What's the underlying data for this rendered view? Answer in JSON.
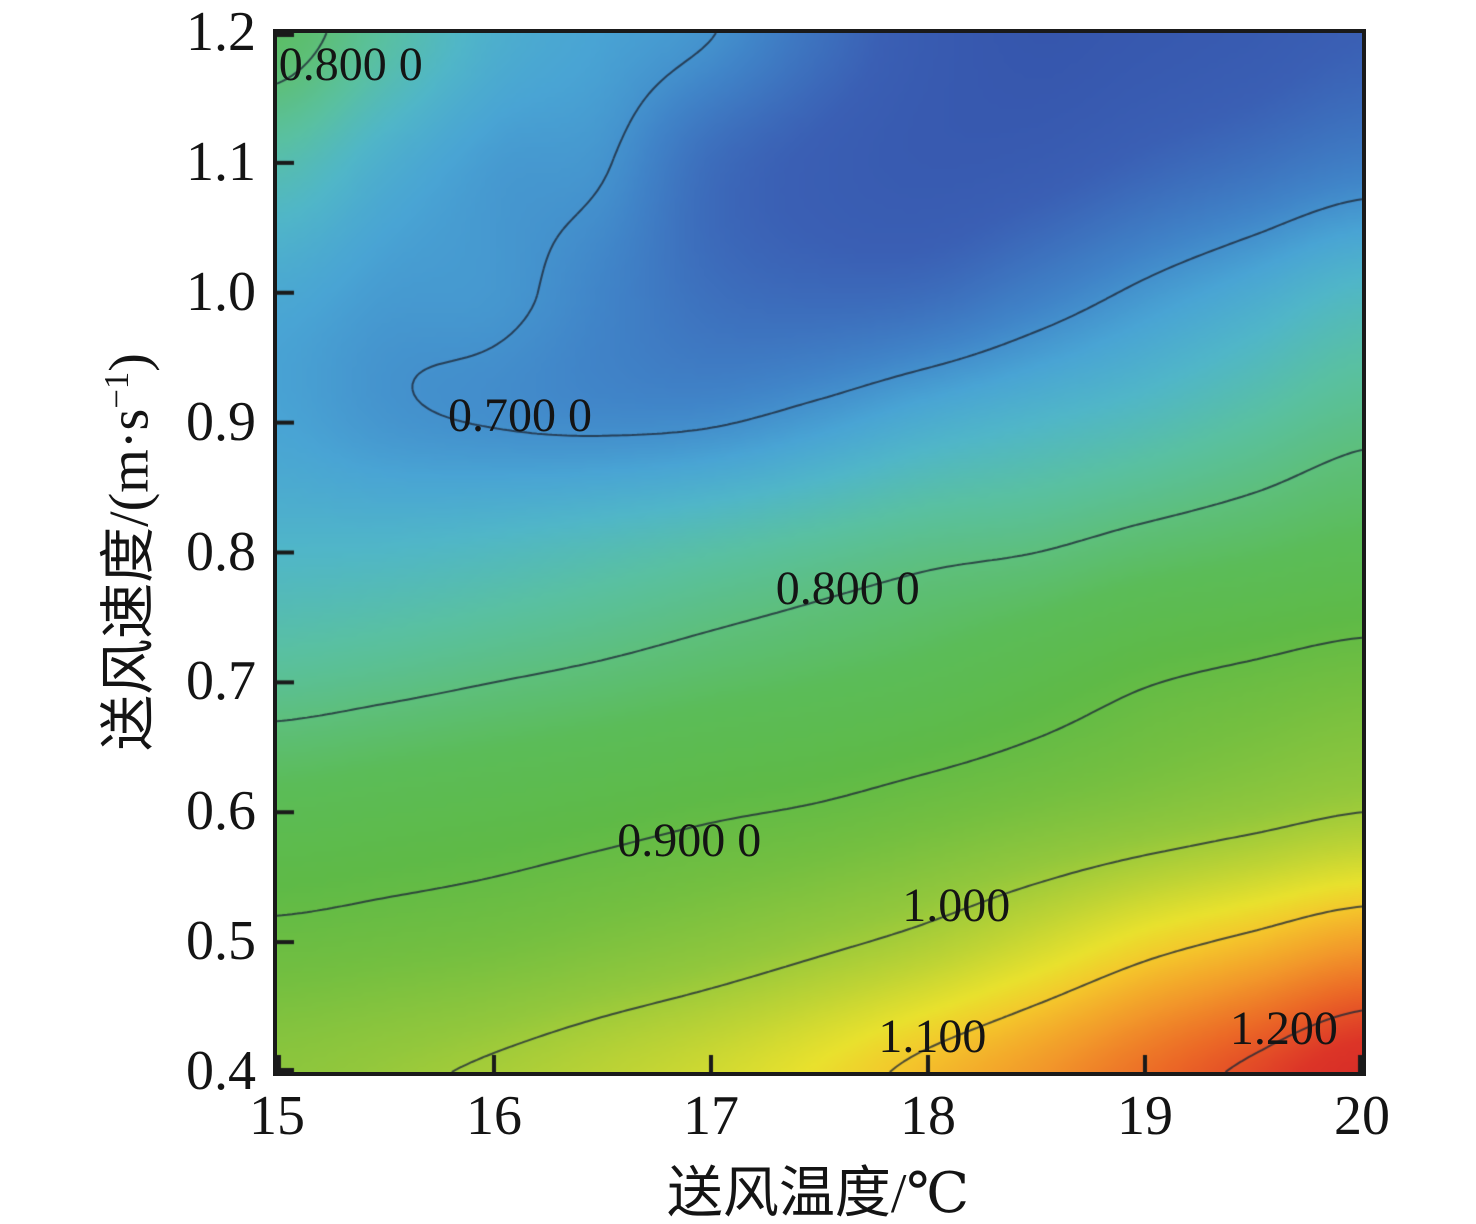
{
  "chart_data": {
    "type": "heatmap",
    "subtype": "filled-contour",
    "title": "",
    "xlabel": "送风温度/℃",
    "ylabel": "送风速度/(m·s⁻¹)",
    "ylabel_parts": {
      "pre": "送风速度/(m·s",
      "sup": "−1",
      "post": ")"
    },
    "xlim": [
      15,
      20
    ],
    "ylim": [
      0.4,
      1.2
    ],
    "x_ticks": [
      "15",
      "16",
      "17",
      "18",
      "19",
      "20"
    ],
    "y_ticks": [
      "0.4",
      "0.5",
      "0.6",
      "0.7",
      "0.8",
      "0.9",
      "1.0",
      "1.1",
      "1.2"
    ],
    "grid_x": [
      15,
      15.5,
      16,
      16.5,
      17,
      17.5,
      18,
      18.5,
      19,
      19.5,
      20
    ],
    "grid_y": [
      1.2,
      1.1,
      1.0,
      0.9,
      0.8,
      0.7,
      0.6,
      0.5,
      0.4
    ],
    "values": [
      [
        0.82,
        0.77,
        0.73,
        0.714,
        0.701,
        0.672,
        0.645,
        0.632,
        0.638,
        0.645,
        0.655
      ],
      [
        0.76,
        0.728,
        0.708,
        0.702,
        0.668,
        0.652,
        0.643,
        0.647,
        0.66,
        0.672,
        0.685
      ],
      [
        0.72,
        0.708,
        0.705,
        0.69,
        0.671,
        0.665,
        0.668,
        0.685,
        0.705,
        0.724,
        0.745
      ],
      [
        0.715,
        0.704,
        0.699,
        0.696,
        0.698,
        0.71,
        0.727,
        0.74,
        0.753,
        0.771,
        0.79
      ],
      [
        0.74,
        0.742,
        0.748,
        0.757,
        0.768,
        0.78,
        0.792,
        0.8,
        0.816,
        0.829,
        0.843
      ],
      [
        0.782,
        0.79,
        0.8,
        0.81,
        0.822,
        0.833,
        0.847,
        0.87,
        0.897,
        0.914,
        0.93
      ],
      [
        0.848,
        0.858,
        0.868,
        0.88,
        0.894,
        0.906,
        0.925,
        0.944,
        0.963,
        0.982,
        1.0
      ],
      [
        0.913,
        0.922,
        0.933,
        0.95,
        0.968,
        0.99,
        1.014,
        1.048,
        1.084,
        1.11,
        1.137
      ],
      [
        0.975,
        0.99,
        1.007,
        1.028,
        1.05,
        1.078,
        1.112,
        1.143,
        1.177,
        1.208,
        1.24
      ]
    ],
    "contour_levels": [
      0.7,
      0.8,
      0.9,
      1.0,
      1.1,
      1.2
    ],
    "contour_labels": [
      {
        "text": "0.800 0",
        "x": 15.34,
        "y": 1.175
      },
      {
        "text": "0.700 0",
        "x": 16.12,
        "y": 0.905
      },
      {
        "text": "0.800 0",
        "x": 17.63,
        "y": 0.772
      },
      {
        "text": "0.900 0",
        "x": 16.9,
        "y": 0.578
      },
      {
        "text": "1.000",
        "x": 18.13,
        "y": 0.528
      },
      {
        "text": "1.100",
        "x": 18.02,
        "y": 0.427
      },
      {
        "text": "1.200",
        "x": 19.64,
        "y": 0.433
      }
    ],
    "colormap": [
      {
        "v": 0.615,
        "c": "#3350a8"
      },
      {
        "v": 0.655,
        "c": "#3a5fb4"
      },
      {
        "v": 0.69,
        "c": "#4084c8"
      },
      {
        "v": 0.715,
        "c": "#49a4d4"
      },
      {
        "v": 0.74,
        "c": "#50b6c8"
      },
      {
        "v": 0.77,
        "c": "#59c0a2"
      },
      {
        "v": 0.8,
        "c": "#5dbf7c"
      },
      {
        "v": 0.835,
        "c": "#5bbc58"
      },
      {
        "v": 0.885,
        "c": "#5eba47"
      },
      {
        "v": 0.935,
        "c": "#74bf40"
      },
      {
        "v": 0.985,
        "c": "#92c73c"
      },
      {
        "v": 1.035,
        "c": "#c0d434"
      },
      {
        "v": 1.075,
        "c": "#e9e12d"
      },
      {
        "v": 1.105,
        "c": "#f4c52b"
      },
      {
        "v": 1.145,
        "c": "#f2982a"
      },
      {
        "v": 1.185,
        "c": "#eb6726"
      },
      {
        "v": 1.225,
        "c": "#dc3527"
      },
      {
        "v": 1.265,
        "c": "#d22328"
      }
    ],
    "line_color": "rgba(30,40,55,0.78)",
    "axis_color": "#1a1a1a",
    "legend": "none",
    "grid": "off"
  }
}
